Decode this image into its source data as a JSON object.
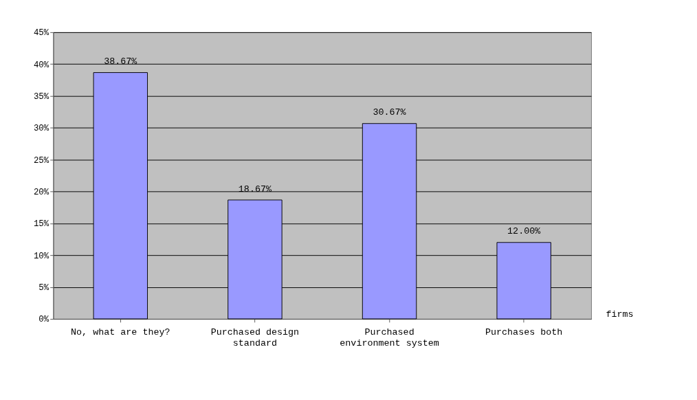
{
  "chart_data": {
    "type": "bar",
    "categories": [
      "No, what are they?",
      "Purchased design standard",
      "Purchased environment system",
      "Purchases both"
    ],
    "values": [
      38.67,
      18.67,
      30.67,
      12.0
    ],
    "value_labels": [
      "38.67%",
      "18.67%",
      "30.67%",
      "12.00%"
    ],
    "color": "#9999ff",
    "xlabel": "firms",
    "ylim": [
      0,
      45
    ],
    "yticks": [
      {
        "value": 0,
        "label": "0%"
      },
      {
        "value": 5,
        "label": "5%"
      },
      {
        "value": 10,
        "label": "10%"
      },
      {
        "value": 15,
        "label": "15%"
      },
      {
        "value": 20,
        "label": "20%"
      },
      {
        "value": 25,
        "label": "25%"
      },
      {
        "value": 30,
        "label": "30%"
      },
      {
        "value": 35,
        "label": "35%"
      },
      {
        "value": 40,
        "label": "40%"
      },
      {
        "value": 45,
        "label": "45%"
      }
    ],
    "grid": "y"
  }
}
